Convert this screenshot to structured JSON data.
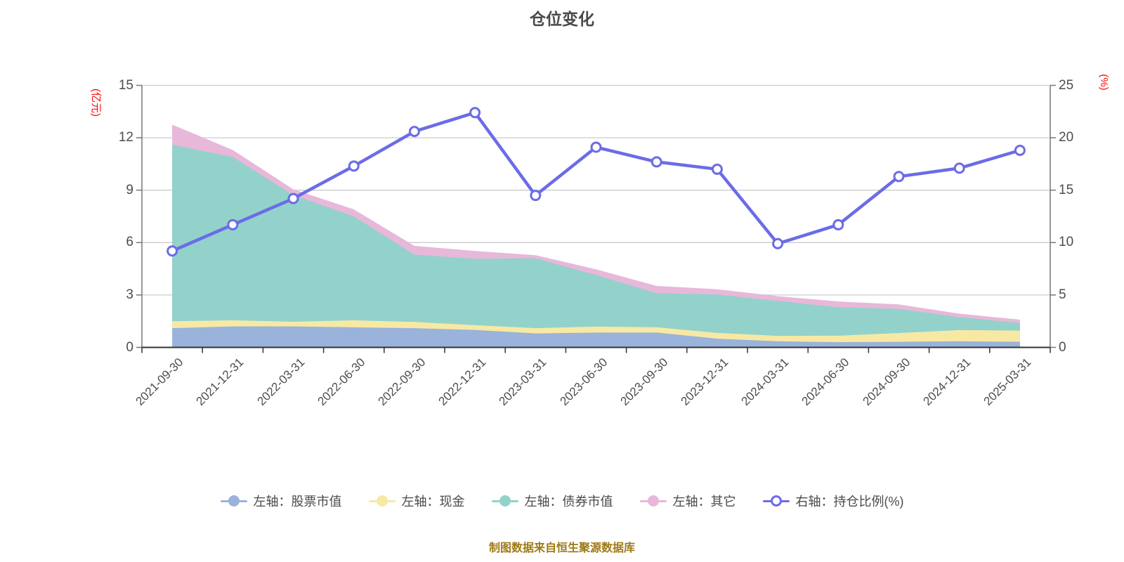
{
  "title": "仓位变化",
  "footer": "制图数据来自恒生聚源数据库",
  "legend": {
    "items": [
      {
        "key": "stock",
        "label": "左轴：股票市值",
        "color": "#9ab3da",
        "marker": "filled"
      },
      {
        "key": "cash",
        "label": "左轴：现金",
        "color": "#f7e9a4",
        "marker": "filled"
      },
      {
        "key": "bond",
        "label": "左轴：债券市值",
        "color": "#92d2cb",
        "marker": "filled"
      },
      {
        "key": "other",
        "label": "左轴：其它",
        "color": "#e7b8d9",
        "marker": "filled"
      },
      {
        "key": "ratio",
        "label": "右轴：持仓比例(%)",
        "color": "#6b6ce6",
        "marker": "hollow"
      }
    ]
  },
  "chart_data": {
    "type": "area",
    "title": "仓位变化",
    "categories": [
      "2021-09-30",
      "2021-12-31",
      "2022-03-31",
      "2022-06-30",
      "2022-09-30",
      "2022-12-31",
      "2023-03-31",
      "2023-06-30",
      "2023-09-30",
      "2023-12-31",
      "2024-03-31",
      "2024-06-30",
      "2024-09-30",
      "2024-12-31",
      "2025-03-31"
    ],
    "left_axis": {
      "name": "(亿元)",
      "min": 0,
      "max": 15,
      "ticks": [
        0,
        3,
        6,
        9,
        12,
        15
      ]
    },
    "right_axis": {
      "name": "(%)",
      "min": 0,
      "max": 25,
      "ticks": [
        0,
        5,
        10,
        15,
        20,
        25
      ]
    },
    "grid": true,
    "legend_position": "bottom",
    "series": [
      {
        "key": "stock",
        "name": "股票市值",
        "type": "area",
        "axis": "left",
        "stack": true,
        "color": "#9ab3da",
        "values": [
          1.1,
          1.2,
          1.2,
          1.15,
          1.1,
          1.0,
          0.8,
          0.85,
          0.85,
          0.5,
          0.35,
          0.3,
          0.32,
          0.35,
          0.32
        ]
      },
      {
        "key": "cash",
        "name": "现金",
        "type": "area",
        "axis": "left",
        "stack": true,
        "color": "#f7e9a4",
        "values": [
          0.4,
          0.35,
          0.27,
          0.4,
          0.36,
          0.27,
          0.3,
          0.34,
          0.3,
          0.33,
          0.31,
          0.37,
          0.5,
          0.64,
          0.64
        ]
      },
      {
        "key": "bond",
        "name": "债券市值",
        "type": "area",
        "axis": "left",
        "stack": true,
        "color": "#92d2cb",
        "values": [
          10.1,
          9.35,
          7.25,
          5.95,
          3.85,
          3.8,
          4.0,
          2.95,
          1.95,
          2.2,
          2.0,
          1.63,
          1.38,
          0.74,
          0.43
        ]
      },
      {
        "key": "other",
        "name": "其它",
        "type": "area",
        "axis": "left",
        "stack": true,
        "color": "#e7b8d9",
        "values": [
          1.15,
          0.4,
          0.33,
          0.4,
          0.5,
          0.45,
          0.18,
          0.33,
          0.42,
          0.3,
          0.27,
          0.33,
          0.26,
          0.2,
          0.2
        ]
      },
      {
        "key": "ratio",
        "name": "持仓比例(%)",
        "type": "line",
        "axis": "right",
        "stack": false,
        "color": "#6b6ce6",
        "marker": {
          "fill": "#ffffff",
          "radius": 6.5,
          "stroke_width": 3
        },
        "values": [
          9.2,
          11.7,
          14.2,
          17.3,
          20.6,
          22.4,
          14.5,
          19.1,
          17.7,
          17.0,
          9.9,
          11.7,
          16.3,
          17.1,
          18.8
        ]
      }
    ],
    "colors": {
      "grid": "#cccccc",
      "axis_side": "#777777",
      "axis_bottom": "#333333",
      "tick_label": "#4d4d4d",
      "axis_name": "#ff0000"
    }
  }
}
